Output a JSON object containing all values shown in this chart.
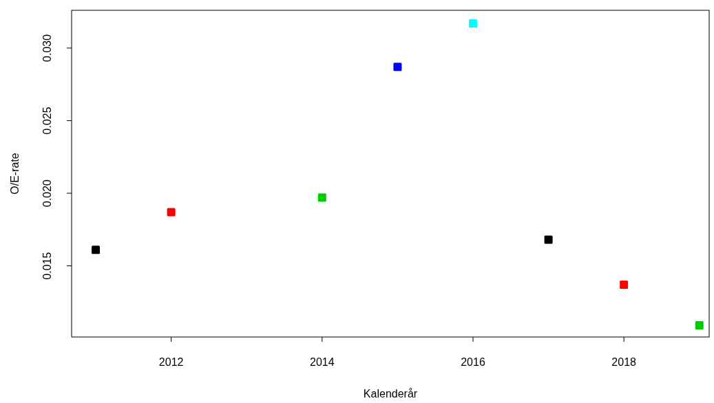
{
  "chart_data": {
    "type": "scatter",
    "xlabel": "Kalenderår",
    "ylabel": "O/E-rate",
    "x": [
      2011,
      2012,
      2014,
      2015,
      2016,
      2017,
      2018,
      2019
    ],
    "values": [
      0.0161,
      0.0187,
      0.0197,
      0.0287,
      0.0317,
      0.0168,
      0.0137,
      0.0109
    ],
    "colors": [
      "#000000",
      "#ff0000",
      "#00cd00",
      "#0000ff",
      "#00ffff",
      "#000000",
      "#ff0000",
      "#00cd00"
    ],
    "marker": "square",
    "xlim": [
      2010.68,
      2019.13
    ],
    "xticks": [
      2012,
      2014,
      2016,
      2018
    ],
    "ylim": [
      0.0101,
      0.0326
    ],
    "yticks": [
      {
        "value": 0.015,
        "label": "0.015"
      },
      {
        "value": 0.02,
        "label": "0.020"
      },
      {
        "value": 0.025,
        "label": "0.025"
      },
      {
        "value": 0.03,
        "label": "0.030"
      }
    ],
    "grid": false
  }
}
